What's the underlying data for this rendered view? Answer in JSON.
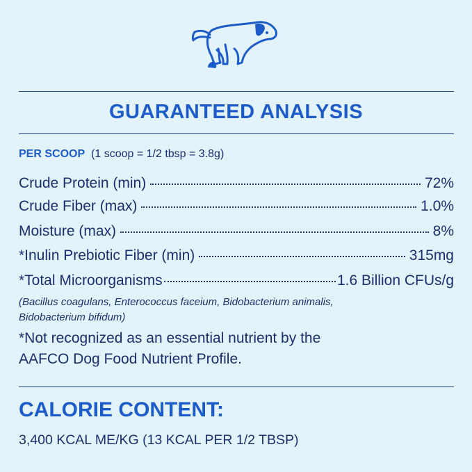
{
  "icon": "dog-pooping-icon",
  "colors": {
    "background": "#e2f3fb",
    "heading": "#1d5cc8",
    "text": "#1a2f6e"
  },
  "title": "GUARANTEED ANALYSIS",
  "per_scoop": {
    "label": "PER SCOOP",
    "detail": "(1 scoop = 1/2 tbsp = 3.8g)"
  },
  "rows": [
    {
      "label": "Crude Protein (min)",
      "value": "72%"
    },
    {
      "label": "Crude Fiber (max)",
      "value": "1.0%"
    },
    {
      "label": "Moisture (max)",
      "value": "8%"
    },
    {
      "label": "*Inulin Prebiotic Fiber (min)",
      "value": "315mg"
    },
    {
      "label": "*Total Microorganisms",
      "value": "1.6 Billion CFUs/g"
    }
  ],
  "strains": [
    "(Bacillus coagulans, Enterococcus faceium, Bidobacterium animalis,",
    "Bidobacterium bifidum)"
  ],
  "footnote": [
    "*Not recognized as an essential nutrient by the",
    "AAFCO Dog Food Nutrient Profile."
  ],
  "calorie": {
    "heading": "CALORIE CONTENT:",
    "value": "3,400 KCAL ME/KG (13 KCAL PER 1/2 TBSP)"
  }
}
